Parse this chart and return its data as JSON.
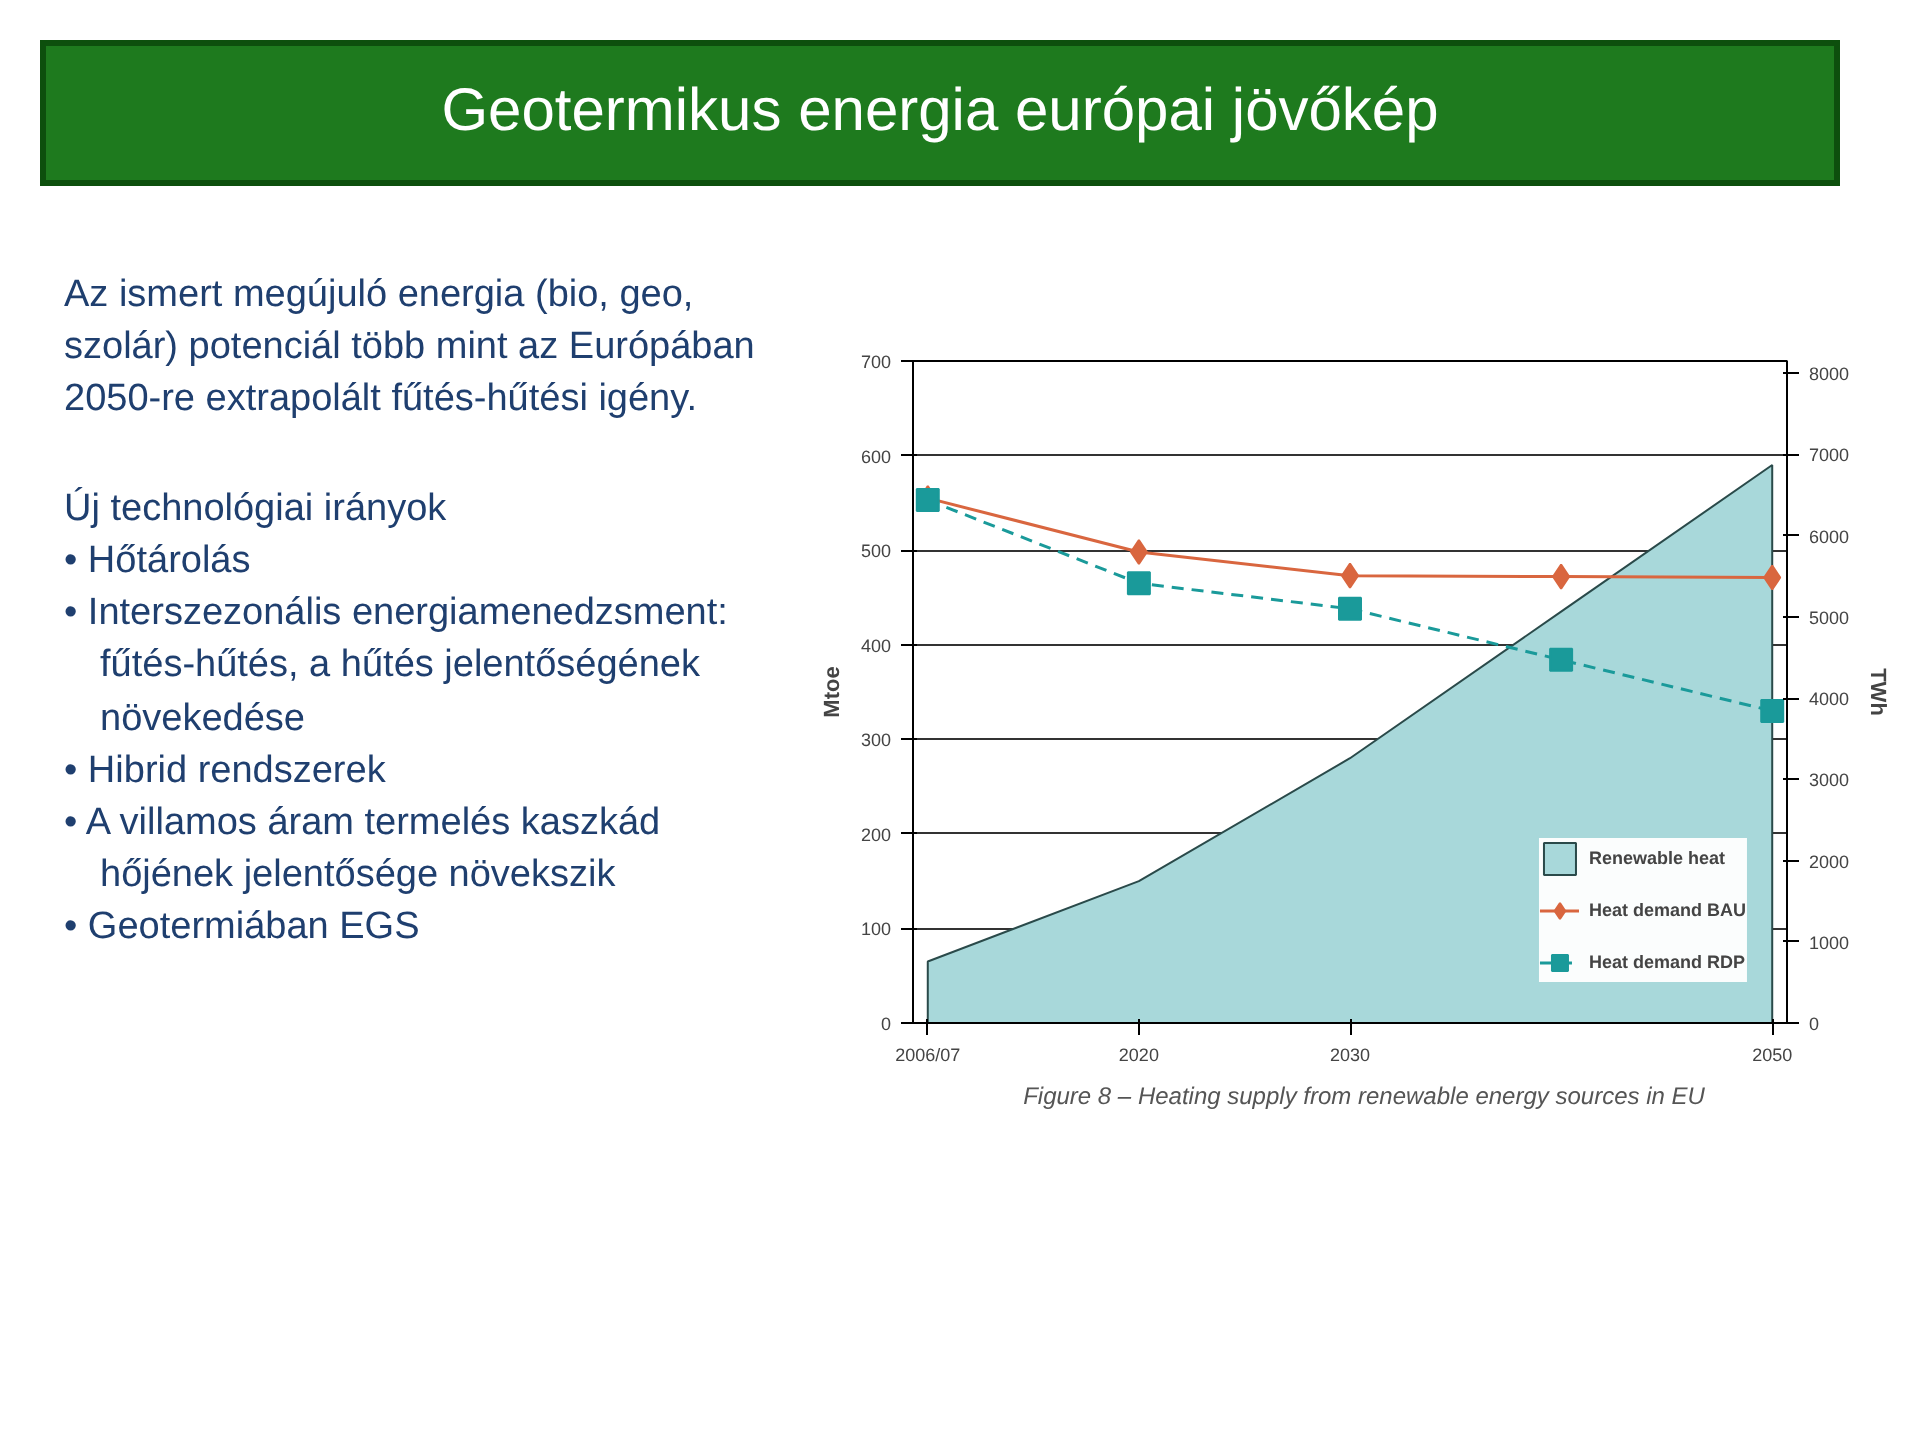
{
  "chart_data": {
    "type": "area",
    "title": "Geotermikus energia európai jövőkép",
    "annotations": [
      "Az ismert megújuló energia (bio, geo, szolár) potenciál több mint az Európában 2050-re extrapolált fűtés-hűtési igény.",
      "Új technológiai irányok",
      "• Hőtárolás",
      "• Interszezonális energiamenedzsment: fűtés-hűtés, a hűtés jelentőségének növekedése",
      "• Hibrid rendszerek",
      "• A villamos áram termelés kaszkád hőjének jelentősége növekszik",
      "• Geotermiában EGS",
      "Figure 8 – Heating supply from renewable energy sources in EU"
    ],
    "categories": [
      "2006/07",
      "2020",
      "2030",
      null,
      "2050"
    ],
    "series": [
      {
        "name": "Renewable heat",
        "color": "#a8d8da",
        "marker": "none",
        "values": [
          65,
          150,
          280,
          435,
          590
        ]
      },
      {
        "name": "Heat demand BAU",
        "type": "line",
        "color": "#d9663f",
        "marker": "diamond",
        "line_style": "solid",
        "values": [
          555,
          498,
          473,
          472,
          471
        ]
      },
      {
        "name": "Heat demand RDP",
        "type": "line",
        "color": "#1a9a9a",
        "marker": "square",
        "line_style": "dashed",
        "values": [
          553,
          465,
          438,
          384,
          330
        ]
      }
    ],
    "ylabel": "Mtoe",
    "y2label": "TWh",
    "ylim": [
      0,
      700
    ],
    "yticks": [
      0,
      100,
      200,
      300,
      400,
      500,
      600,
      700
    ],
    "y2lim": [
      0,
      8150
    ],
    "y2ticks": [
      0,
      1000,
      2000,
      3000,
      4000,
      5000,
      6000,
      7000,
      8000
    ],
    "grid": "y",
    "legend": "bottom right"
  }
}
